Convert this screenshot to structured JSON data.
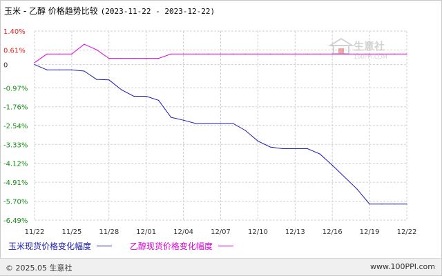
{
  "title": {
    "main": "玉米 - 乙醇 价格趋势比较",
    "range": "(2023-11-22 - 2023-12-22)"
  },
  "watermark": {
    "name": "生意社",
    "url": "100PPI.COM"
  },
  "footer": {
    "copyright": "© 2025.05 生意社",
    "site": "www.100PPI.com"
  },
  "chart_data": {
    "type": "line",
    "x": [
      "11/22",
      "11/23",
      "11/24",
      "11/25",
      "11/26",
      "11/27",
      "11/28",
      "11/29",
      "11/30",
      "12/01",
      "12/02",
      "12/03",
      "12/04",
      "12/05",
      "12/06",
      "12/07",
      "12/08",
      "12/09",
      "12/10",
      "12/11",
      "12/12",
      "12/13",
      "12/14",
      "12/15",
      "12/16",
      "12/17",
      "12/18",
      "12/19",
      "12/20",
      "12/21",
      "12/22"
    ],
    "x_tick_labels": [
      "11/22",
      "11/25",
      "11/28",
      "12/01",
      "12/04",
      "12/07",
      "12/10",
      "12/13",
      "12/16",
      "12/19",
      "12/22"
    ],
    "y_tick_labels": [
      "1.40%",
      "0.61%",
      "0",
      "-0.97%",
      "-1.76%",
      "-2.54%",
      "-3.33%",
      "-4.12%",
      "-4.91%",
      "-5.70%",
      "-6.49%"
    ],
    "y_tick_values": [
      1.4,
      0.61,
      0,
      -0.97,
      -1.76,
      -2.54,
      -3.33,
      -4.12,
      -4.91,
      -5.7,
      -6.49
    ],
    "ylim": [
      -6.49,
      1.4
    ],
    "grid": true,
    "legend_position": "bottom",
    "series": [
      {
        "name": "玉米现货价格变化幅度",
        "color": "#1a1ab4",
        "values": [
          0,
          -0.22,
          -0.22,
          -0.22,
          -0.27,
          -0.62,
          -0.64,
          -1.05,
          -1.32,
          -1.32,
          -1.49,
          -2.2,
          -2.32,
          -2.46,
          -2.46,
          -2.46,
          -2.46,
          -2.75,
          -3.19,
          -3.44,
          -3.51,
          -3.51,
          -3.51,
          -3.73,
          -4.2,
          -4.7,
          -5.2,
          -5.82,
          -5.82,
          -5.82,
          -5.82
        ]
      },
      {
        "name": "乙醇现货价格变化幅度",
        "color": "#dd00dd",
        "values": [
          0.08,
          0.44,
          0.44,
          0.44,
          0.85,
          0.62,
          0.26,
          0.26,
          0.26,
          0.26,
          0.26,
          0.44,
          0.44,
          0.44,
          0.44,
          0.44,
          0.44,
          0.44,
          0.44,
          0.44,
          0.44,
          0.44,
          0.44,
          0.44,
          0.44,
          0.44,
          0.44,
          0.44,
          0.44,
          0.44,
          0.44
        ]
      }
    ]
  }
}
